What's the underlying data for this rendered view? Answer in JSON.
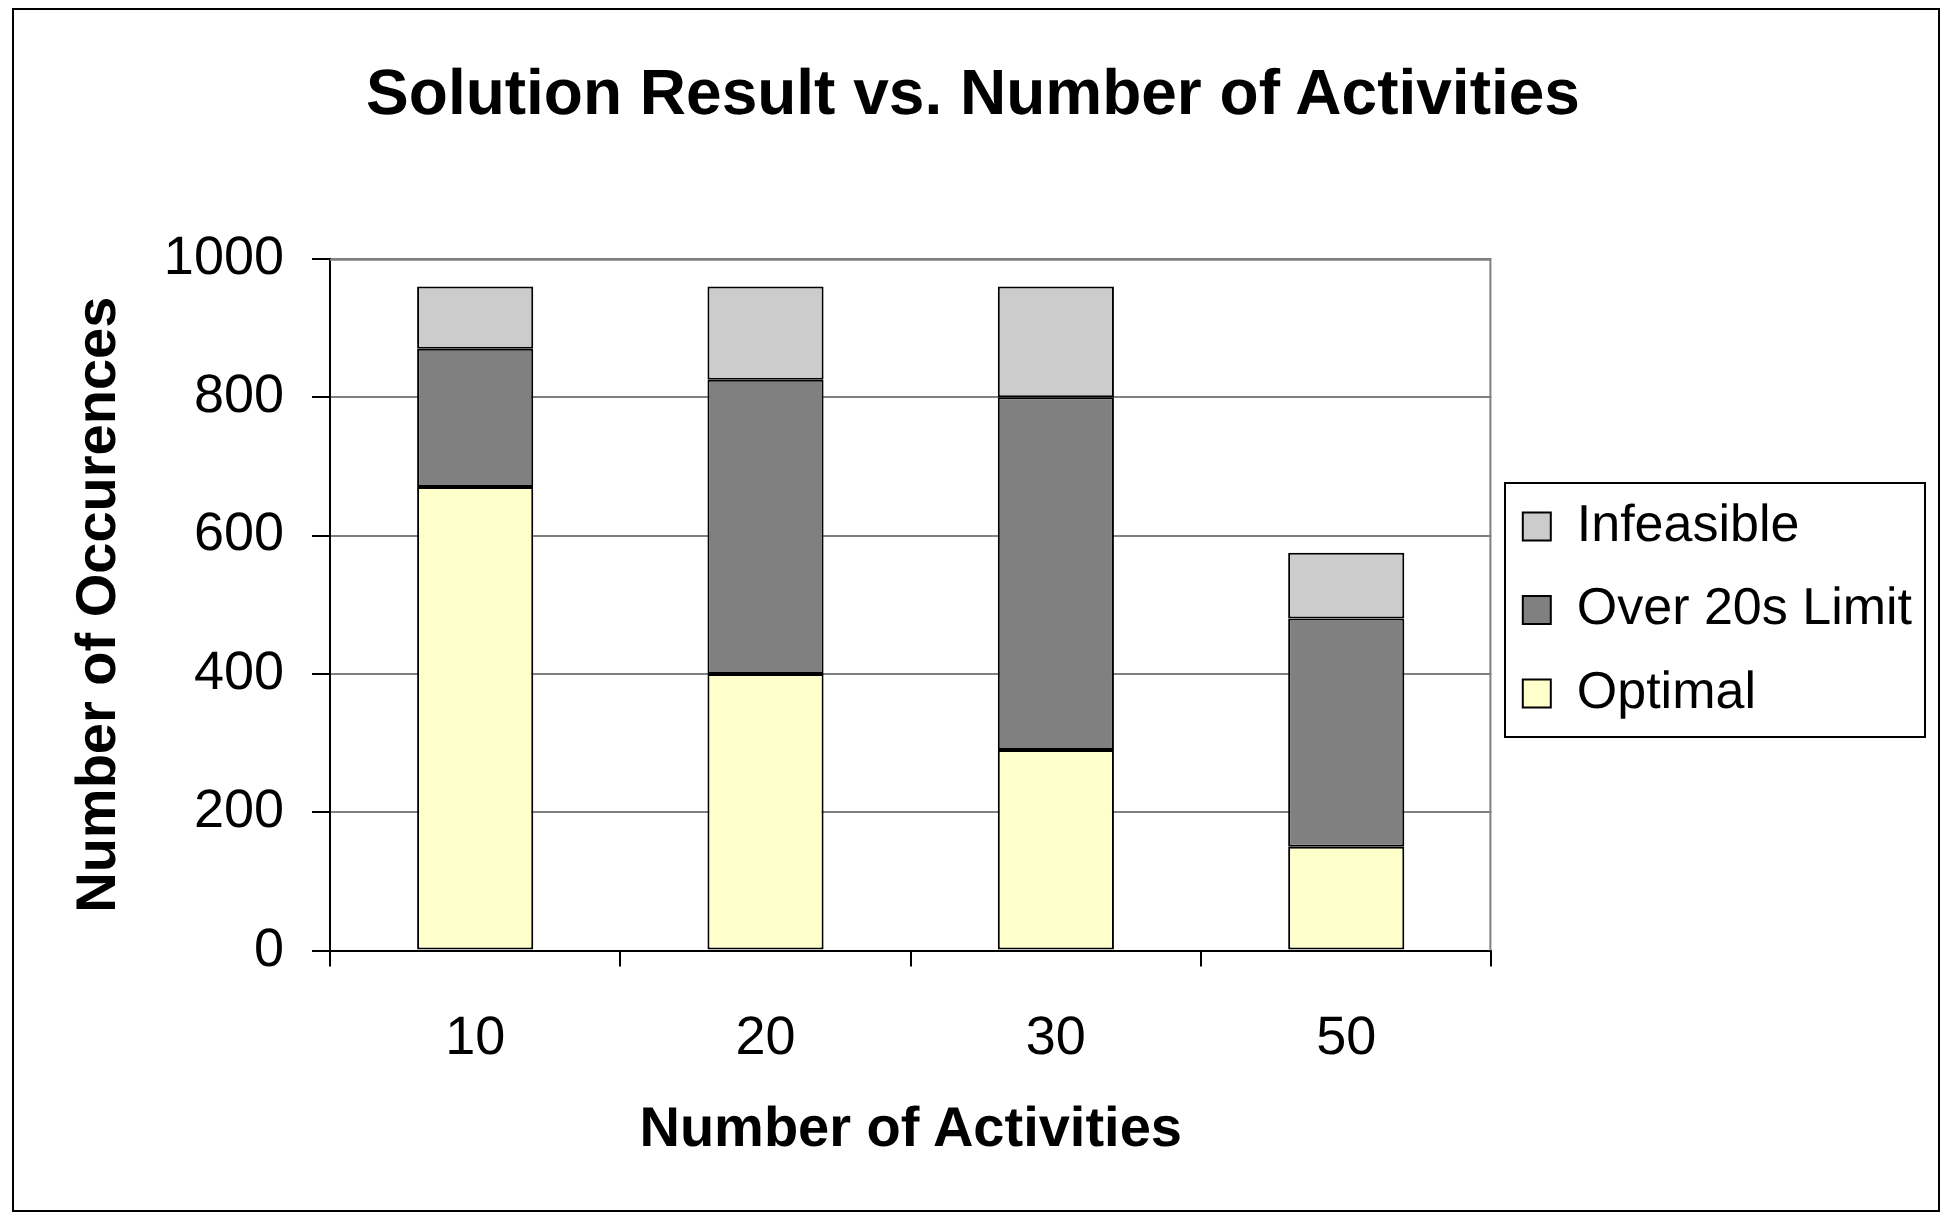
{
  "chart_data": {
    "type": "bar",
    "title": "Solution Result vs. Number of Activities",
    "xlabel": "Number of Activities",
    "ylabel": "Number of Occurences",
    "categories": [
      "10",
      "20",
      "30",
      "50"
    ],
    "stacked": true,
    "series": [
      {
        "name": "Optimal",
        "color": "#ffffcc",
        "values": [
          670,
          400,
          290,
          150
        ]
      },
      {
        "name": "Over 20s Limit",
        "color": "#808080",
        "values": [
          200,
          425,
          510,
          330
        ]
      },
      {
        "name": "Infeasible",
        "color": "#cccccc",
        "values": [
          90,
          135,
          160,
          95
        ]
      }
    ],
    "ylim": [
      0,
      1000
    ],
    "yticks": [
      0,
      200,
      400,
      600,
      800,
      1000
    ],
    "grid": "y",
    "legend": "right"
  }
}
